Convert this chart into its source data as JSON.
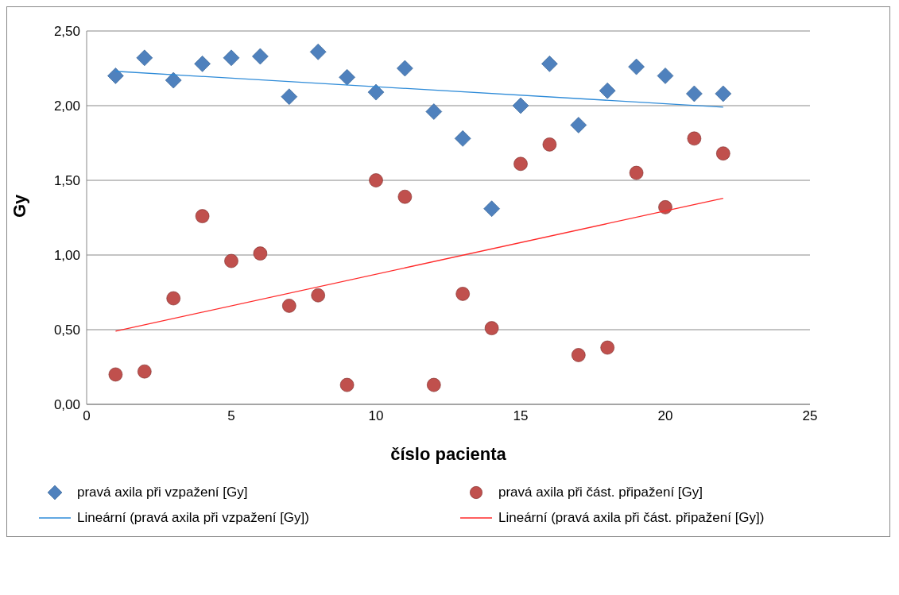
{
  "chart_data": {
    "type": "scatter",
    "xlabel": "číslo pacienta",
    "ylabel": "Gy",
    "xlim": [
      0,
      25
    ],
    "xticks": [
      0,
      5,
      10,
      15,
      20,
      25
    ],
    "ylim": [
      0,
      2.5
    ],
    "yticks": [
      {
        "value": 0,
        "label": "0,00"
      },
      {
        "value": 0.5,
        "label": "0,50"
      },
      {
        "value": 1,
        "label": "1,00"
      },
      {
        "value": 1.5,
        "label": "1,50"
      },
      {
        "value": 2,
        "label": "2,00"
      },
      {
        "value": 2.5,
        "label": "2,50"
      }
    ],
    "grid": "y",
    "legend": "bottom",
    "series": [
      {
        "name": "pravá axila při vzpažení [Gy]",
        "marker": "diamond",
        "color": "#4f81bd",
        "x": [
          1,
          2,
          3,
          4,
          5,
          6,
          7,
          8,
          9,
          10,
          11,
          12,
          13,
          14,
          15,
          16,
          17,
          18,
          19,
          20,
          21,
          22
        ],
        "values": [
          2.2,
          2.32,
          2.17,
          2.28,
          2.32,
          2.33,
          2.06,
          2.36,
          2.19,
          2.09,
          2.25,
          1.96,
          1.78,
          1.31,
          2.0,
          2.28,
          1.87,
          2.1,
          2.26,
          2.2,
          2.08,
          2.08
        ]
      },
      {
        "name": "pravá axila při část. připažení [Gy]",
        "marker": "circle",
        "color": "#c0504d",
        "x": [
          1,
          2,
          3,
          4,
          5,
          6,
          7,
          8,
          9,
          10,
          11,
          12,
          13,
          14,
          15,
          16,
          17,
          18,
          19,
          20,
          21,
          22
        ],
        "values": [
          0.2,
          0.22,
          0.71,
          1.26,
          0.96,
          1.01,
          0.66,
          0.73,
          0.13,
          1.5,
          1.39,
          0.13,
          0.74,
          0.51,
          1.61,
          1.74,
          0.33,
          0.38,
          1.55,
          1.32,
          1.78,
          1.68
        ]
      },
      {
        "name": "Lineární (pravá axila při vzpažení [Gy])",
        "type": "line",
        "color": "#2e8bd8",
        "x": [
          1,
          22
        ],
        "values": [
          2.23,
          1.99
        ]
      },
      {
        "name": "Lineární (pravá axila při část. připažení [Gy])",
        "type": "line",
        "color": "#ff2a2a",
        "x": [
          1,
          22
        ],
        "values": [
          0.49,
          1.38
        ]
      }
    ]
  }
}
